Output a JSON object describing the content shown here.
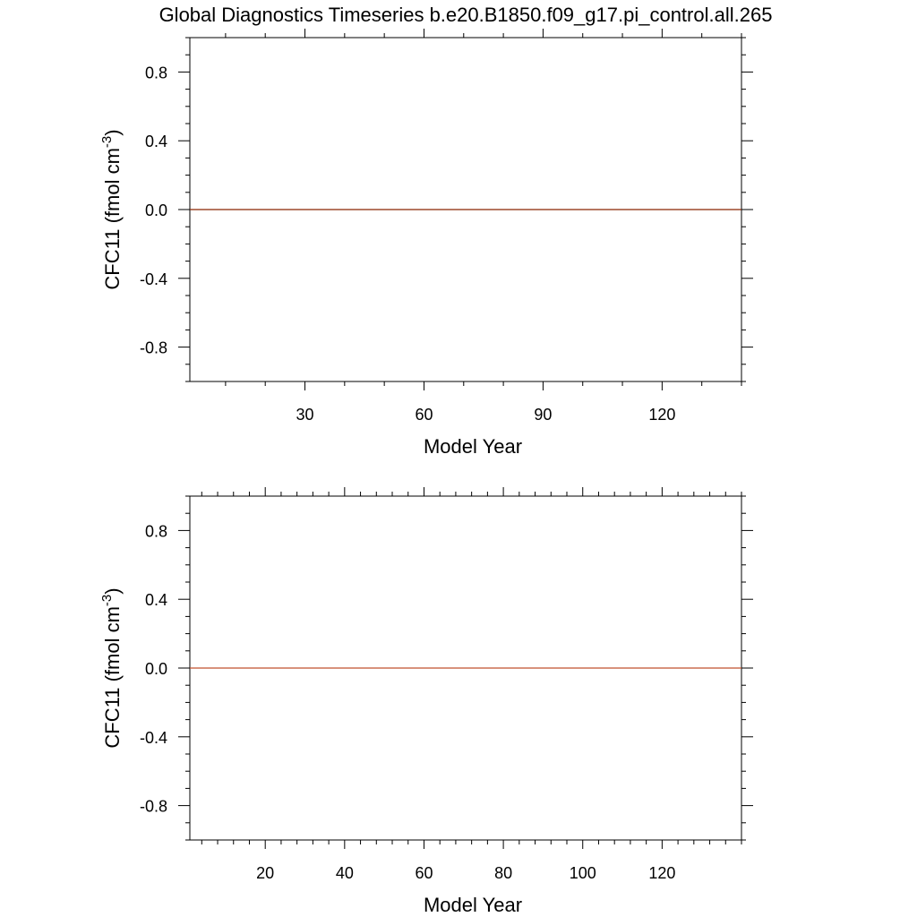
{
  "figure": {
    "title": "Global Diagnostics Timeseries b.e20.B1850.f09_g17.pi_control.all.265"
  },
  "chart_data": [
    {
      "type": "line",
      "title": "",
      "xlabel": "Model Year",
      "ylabel": "CFC11 (fmol cm-3)",
      "ylabel_parts": {
        "pre": "CFC11 (fmol cm",
        "sup": "-3",
        "post": ")"
      },
      "xlim": [
        1,
        140
      ],
      "ylim": [
        -1.0,
        1.0
      ],
      "x_ticks": [
        30,
        60,
        90,
        120
      ],
      "x_minor_step": 10,
      "y_ticks": [
        0.8,
        0.4,
        0.0,
        -0.4,
        -0.8
      ],
      "y_tick_labels": [
        "0.8",
        "0.4",
        "0.0",
        "-0.4",
        "-0.8"
      ],
      "y_minor_step": 0.1,
      "grid": false,
      "series": [
        {
          "x": [
            1,
            140
          ],
          "y": [
            0.0,
            0.0
          ],
          "color": "#8B2500"
        }
      ]
    },
    {
      "type": "line",
      "title": "",
      "xlabel": "Model Year",
      "ylabel": "CFC11 (fmol cm-3)",
      "ylabel_parts": {
        "pre": "CFC11 (fmol cm",
        "sup": "-3",
        "post": ")"
      },
      "xlim": [
        1,
        140
      ],
      "ylim": [
        -1.0,
        1.0
      ],
      "x_ticks": [
        20,
        40,
        60,
        80,
        100,
        120
      ],
      "x_minor_step": 4,
      "y_ticks": [
        0.8,
        0.4,
        0.0,
        -0.4,
        -0.8
      ],
      "y_tick_labels": [
        "0.8",
        "0.4",
        "0.0",
        "-0.4",
        "-0.8"
      ],
      "y_minor_step": 0.1,
      "grid": false,
      "series": [
        {
          "x": [
            1,
            140
          ],
          "y": [
            0.0,
            0.0
          ],
          "color": "#C0502D"
        }
      ]
    }
  ]
}
